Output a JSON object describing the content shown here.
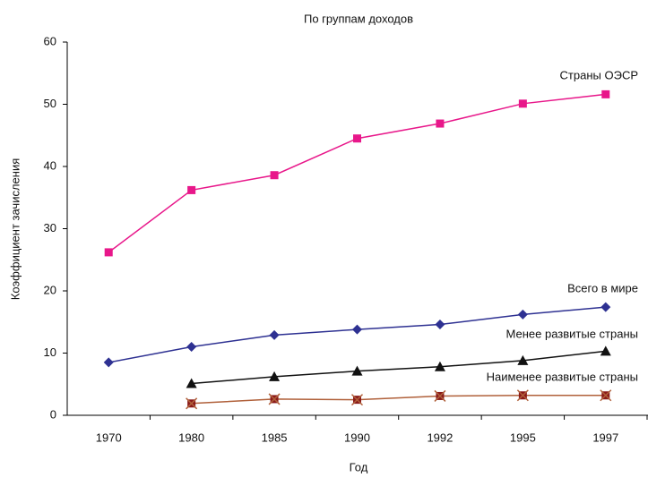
{
  "chart_data": {
    "type": "line",
    "title": "По группам доходов",
    "x_label": "Год",
    "y_label": "Коэффициент зачисления",
    "categories": [
      "1970",
      "1980",
      "1985",
      "1990",
      "1992",
      "1995",
      "1997"
    ],
    "ylim": [
      0,
      60
    ],
    "yticks": [
      0,
      10,
      20,
      30,
      40,
      50,
      60
    ],
    "grid": false,
    "series": [
      {
        "name": "Страны ОЭСР",
        "color": "#e8178a",
        "marker": "square",
        "values": [
          26.2,
          36.2,
          38.6,
          44.5,
          46.9,
          50.1,
          51.6
        ]
      },
      {
        "name": "Всего в мире",
        "color": "#2e3192",
        "marker": "diamond",
        "values": [
          8.5,
          11.0,
          12.9,
          13.8,
          14.6,
          16.2,
          17.4
        ]
      },
      {
        "name": "Менее развитые страны",
        "color": "#111111",
        "marker": "triangle",
        "values": [
          null,
          5.1,
          6.2,
          7.1,
          7.8,
          8.8,
          10.3
        ]
      },
      {
        "name": "Наименее развитые страны",
        "color": "#b0603a",
        "marker": "xsquare",
        "values": [
          null,
          1.9,
          2.6,
          2.5,
          3.1,
          3.2,
          3.2
        ]
      }
    ]
  }
}
